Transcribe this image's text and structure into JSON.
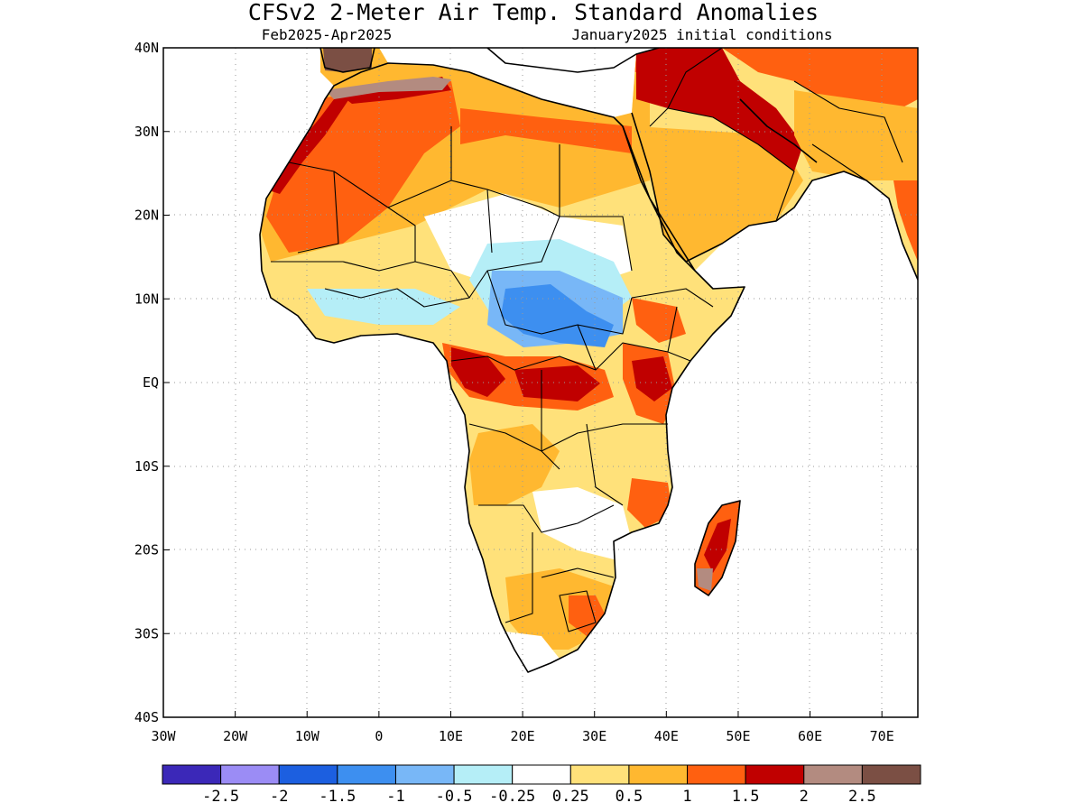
{
  "header": {
    "title": "CFSv2 2-Meter Air Temp. Standard Anomalies",
    "period": "Feb2025-Apr2025",
    "initial_conditions": "January2025 initial conditions"
  },
  "map": {
    "lon_range": [
      -30,
      75
    ],
    "lat_range": [
      -40,
      40
    ],
    "lon_ticks": [
      {
        "value": -30,
        "label": "30W"
      },
      {
        "value": -20,
        "label": "20W"
      },
      {
        "value": -10,
        "label": "10W"
      },
      {
        "value": 0,
        "label": "0"
      },
      {
        "value": 10,
        "label": "10E"
      },
      {
        "value": 20,
        "label": "20E"
      },
      {
        "value": 30,
        "label": "30E"
      },
      {
        "value": 40,
        "label": "40E"
      },
      {
        "value": 50,
        "label": "50E"
      },
      {
        "value": 60,
        "label": "60E"
      },
      {
        "value": 70,
        "label": "70E"
      }
    ],
    "lat_ticks": [
      {
        "value": 40,
        "label": "40N"
      },
      {
        "value": 30,
        "label": "30N"
      },
      {
        "value": 20,
        "label": "20N"
      },
      {
        "value": 10,
        "label": "10N"
      },
      {
        "value": 0,
        "label": "EQ"
      },
      {
        "value": -10,
        "label": "10S"
      },
      {
        "value": -20,
        "label": "20S"
      },
      {
        "value": -30,
        "label": "30S"
      },
      {
        "value": -40,
        "label": "40S"
      }
    ],
    "grid": true
  },
  "colorbar": {
    "colors": [
      "#3b28b8",
      "#9b8cf5",
      "#1c5fe0",
      "#3d8ff0",
      "#78b7f7",
      "#b5eef7",
      "#ffffff",
      "#ffe17a",
      "#ffb830",
      "#ff6010",
      "#c00000",
      "#b38b80",
      "#7b4f44"
    ],
    "labels": [
      "-2.5",
      "-2",
      "-1.5",
      "-1",
      "-0.5",
      "-0.25",
      "0.25",
      "0.5",
      "1",
      "1.5",
      "2",
      "2.5"
    ]
  },
  "regions": [
    {
      "name": "sahara-north",
      "level": 1.5,
      "color": "#ff6010"
    },
    {
      "name": "west-africa-coast-atlas",
      "level": 2,
      "color": "#c00000"
    },
    {
      "name": "northwest-corner",
      "level": 2.5,
      "color": "#b38b80"
    },
    {
      "name": "central-sahel-cool",
      "level": -1,
      "color": "#3d8ff0"
    },
    {
      "name": "congo-warm",
      "level": 2,
      "color": "#c00000"
    },
    {
      "name": "east-africa-warm",
      "level": 2,
      "color": "#c00000"
    },
    {
      "name": "middle-east-hot",
      "level": 2,
      "color": "#c00000"
    },
    {
      "name": "madagascar",
      "level": 2,
      "color": "#c00000"
    },
    {
      "name": "southern-africa",
      "level": 0.5,
      "color": "#ffe17a"
    }
  ]
}
